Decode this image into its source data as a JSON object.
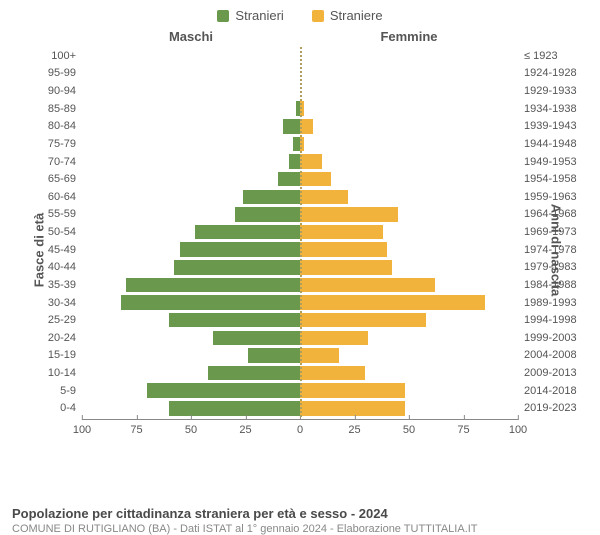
{
  "legend": {
    "male": {
      "label": "Stranieri",
      "color": "#6a994e"
    },
    "female": {
      "label": "Straniere",
      "color": "#f2b33d"
    }
  },
  "headers": {
    "left": "Maschi",
    "right": "Femmine"
  },
  "axis_titles": {
    "left": "Fasce di età",
    "right": "Anni di nascita"
  },
  "x_axis": {
    "max": 100,
    "ticks_left": [
      100,
      75,
      50,
      25,
      0
    ],
    "ticks_right": [
      0,
      25,
      50,
      75,
      100
    ]
  },
  "rows": [
    {
      "age": "100+",
      "birth": "≤ 1923",
      "m": 0,
      "f": 0
    },
    {
      "age": "95-99",
      "birth": "1924-1928",
      "m": 0,
      "f": 0
    },
    {
      "age": "90-94",
      "birth": "1929-1933",
      "m": 0,
      "f": 0
    },
    {
      "age": "85-89",
      "birth": "1934-1938",
      "m": 2,
      "f": 2
    },
    {
      "age": "80-84",
      "birth": "1939-1943",
      "m": 8,
      "f": 6
    },
    {
      "age": "75-79",
      "birth": "1944-1948",
      "m": 3,
      "f": 2
    },
    {
      "age": "70-74",
      "birth": "1949-1953",
      "m": 5,
      "f": 10
    },
    {
      "age": "65-69",
      "birth": "1954-1958",
      "m": 10,
      "f": 14
    },
    {
      "age": "60-64",
      "birth": "1959-1963",
      "m": 26,
      "f": 22
    },
    {
      "age": "55-59",
      "birth": "1964-1968",
      "m": 30,
      "f": 45
    },
    {
      "age": "50-54",
      "birth": "1969-1973",
      "m": 48,
      "f": 38
    },
    {
      "age": "45-49",
      "birth": "1974-1978",
      "m": 55,
      "f": 40
    },
    {
      "age": "40-44",
      "birth": "1979-1983",
      "m": 58,
      "f": 42
    },
    {
      "age": "35-39",
      "birth": "1984-1988",
      "m": 80,
      "f": 62
    },
    {
      "age": "30-34",
      "birth": "1989-1993",
      "m": 82,
      "f": 85
    },
    {
      "age": "25-29",
      "birth": "1994-1998",
      "m": 60,
      "f": 58
    },
    {
      "age": "20-24",
      "birth": "1999-2003",
      "m": 40,
      "f": 31
    },
    {
      "age": "15-19",
      "birth": "2004-2008",
      "m": 24,
      "f": 18
    },
    {
      "age": "10-14",
      "birth": "2009-2013",
      "m": 42,
      "f": 30
    },
    {
      "age": "5-9",
      "birth": "2014-2018",
      "m": 70,
      "f": 48
    },
    {
      "age": "0-4",
      "birth": "2019-2023",
      "m": 60,
      "f": 48
    }
  ],
  "footer": {
    "title": "Popolazione per cittadinanza straniera per età e sesso - 2024",
    "sub": "COMUNE DI RUTIGLIANO (BA) - Dati ISTAT al 1° gennaio 2024 - Elaborazione TUTTITALIA.IT"
  },
  "style": {
    "bar_height_pct": 82,
    "dotted_color": "#b0a060",
    "grid_color": "#888888",
    "label_color": "#555555",
    "background": "#ffffff",
    "label_fontsize": 11,
    "header_fontsize": 13,
    "title_fontsize": 13,
    "sub_fontsize": 11
  }
}
